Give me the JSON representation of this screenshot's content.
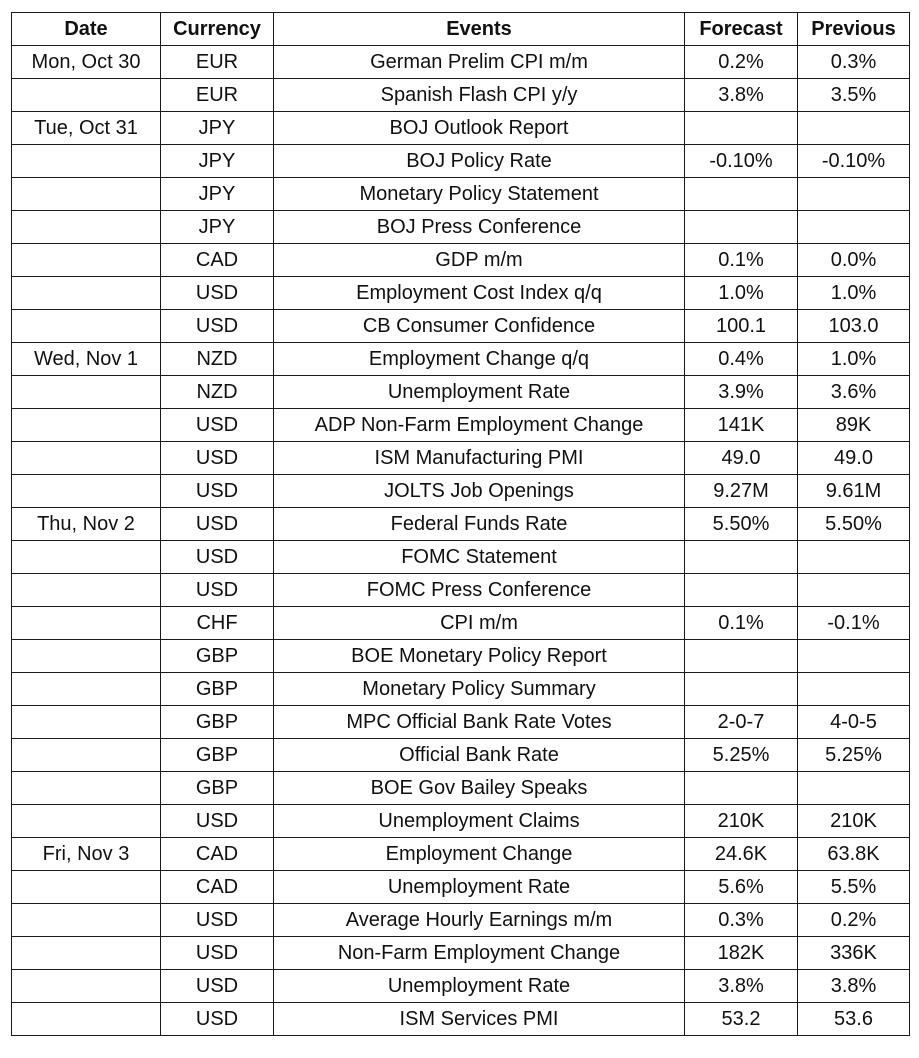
{
  "headers": [
    "Date",
    "Currency",
    "Events",
    "Forecast",
    "Previous"
  ],
  "rows": [
    {
      "date": "Mon, Oct 30",
      "currency": "EUR",
      "event": "German Prelim CPI m/m",
      "forecast": "0.2%",
      "previous": "0.3%"
    },
    {
      "date": "",
      "currency": "EUR",
      "event": "Spanish Flash CPI y/y",
      "forecast": "3.8%",
      "previous": "3.5%"
    },
    {
      "date": "Tue, Oct 31",
      "currency": "JPY",
      "event": "BOJ Outlook Report",
      "forecast": "",
      "previous": ""
    },
    {
      "date": "",
      "currency": "JPY",
      "event": "BOJ Policy Rate",
      "forecast": "-0.10%",
      "previous": "-0.10%"
    },
    {
      "date": "",
      "currency": "JPY",
      "event": "Monetary Policy Statement",
      "forecast": "",
      "previous": ""
    },
    {
      "date": "",
      "currency": "JPY",
      "event": "BOJ Press Conference",
      "forecast": "",
      "previous": ""
    },
    {
      "date": "",
      "currency": "CAD",
      "event": "GDP m/m",
      "forecast": "0.1%",
      "previous": "0.0%"
    },
    {
      "date": "",
      "currency": "USD",
      "event": "Employment Cost Index q/q",
      "forecast": "1.0%",
      "previous": "1.0%"
    },
    {
      "date": "",
      "currency": "USD",
      "event": "CB Consumer Confidence",
      "forecast": "100.1",
      "previous": "103.0"
    },
    {
      "date": "Wed, Nov 1",
      "currency": "NZD",
      "event": "Employment Change q/q",
      "forecast": "0.4%",
      "previous": "1.0%"
    },
    {
      "date": "",
      "currency": "NZD",
      "event": "Unemployment Rate",
      "forecast": "3.9%",
      "previous": "3.6%"
    },
    {
      "date": "",
      "currency": "USD",
      "event": "ADP Non-Farm Employment Change",
      "forecast": "141K",
      "previous": "89K"
    },
    {
      "date": "",
      "currency": "USD",
      "event": "ISM Manufacturing PMI",
      "forecast": "49.0",
      "previous": "49.0"
    },
    {
      "date": "",
      "currency": "USD",
      "event": "JOLTS Job Openings",
      "forecast": "9.27M",
      "previous": "9.61M"
    },
    {
      "date": "Thu, Nov 2",
      "currency": "USD",
      "event": "Federal Funds Rate",
      "forecast": "5.50%",
      "previous": "5.50%"
    },
    {
      "date": "",
      "currency": "USD",
      "event": "FOMC Statement",
      "forecast": "",
      "previous": ""
    },
    {
      "date": "",
      "currency": "USD",
      "event": "FOMC Press Conference",
      "forecast": "",
      "previous": ""
    },
    {
      "date": "",
      "currency": "CHF",
      "event": "CPI m/m",
      "forecast": "0.1%",
      "previous": "-0.1%"
    },
    {
      "date": "",
      "currency": "GBP",
      "event": "BOE Monetary Policy Report",
      "forecast": "",
      "previous": ""
    },
    {
      "date": "",
      "currency": "GBP",
      "event": "Monetary Policy Summary",
      "forecast": "",
      "previous": ""
    },
    {
      "date": "",
      "currency": "GBP",
      "event": "MPC Official Bank Rate Votes",
      "forecast": "2-0-7",
      "previous": "4-0-5"
    },
    {
      "date": "",
      "currency": "GBP",
      "event": "Official Bank Rate",
      "forecast": "5.25%",
      "previous": "5.25%"
    },
    {
      "date": "",
      "currency": "GBP",
      "event": "BOE Gov Bailey Speaks",
      "forecast": "",
      "previous": ""
    },
    {
      "date": "",
      "currency": "USD",
      "event": "Unemployment Claims",
      "forecast": "210K",
      "previous": "210K"
    },
    {
      "date": "Fri, Nov 3",
      "currency": "CAD",
      "event": "Employment Change",
      "forecast": "24.6K",
      "previous": "63.8K"
    },
    {
      "date": "",
      "currency": "CAD",
      "event": "Unemployment Rate",
      "forecast": "5.6%",
      "previous": "5.5%"
    },
    {
      "date": "",
      "currency": "USD",
      "event": "Average Hourly Earnings m/m",
      "forecast": "0.3%",
      "previous": "0.2%"
    },
    {
      "date": "",
      "currency": "USD",
      "event": "Non-Farm Employment Change",
      "forecast": "182K",
      "previous": "336K"
    },
    {
      "date": "",
      "currency": "USD",
      "event": "Unemployment Rate",
      "forecast": "3.8%",
      "previous": "3.8%"
    },
    {
      "date": "",
      "currency": "USD",
      "event": "ISM Services PMI",
      "forecast": "53.2",
      "previous": "53.6"
    }
  ]
}
